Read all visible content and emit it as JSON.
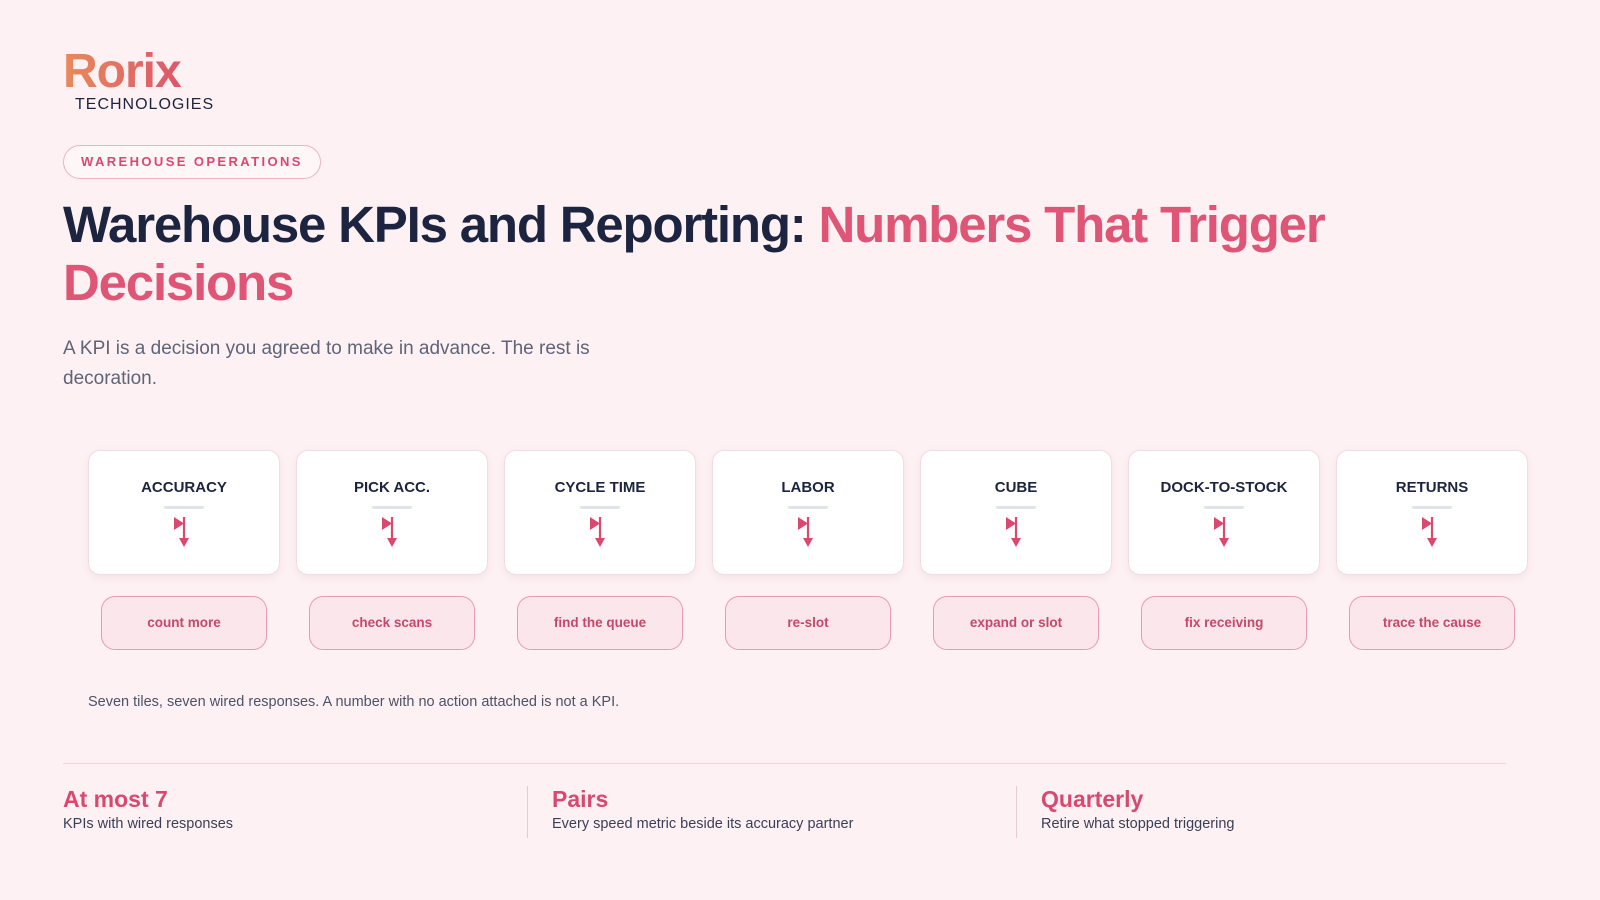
{
  "brand": {
    "name": "Rorix",
    "tagline": "TECHNOLOGIES"
  },
  "eyebrow": "WAREHOUSE OPERATIONS",
  "title": {
    "main": "Warehouse KPIs and Reporting:",
    "highlight": "Numbers That Trigger Decisions"
  },
  "subtitle": "A KPI is a decision you agreed to make in advance. The rest is decoration.",
  "tiles": [
    {
      "label": "ACCURACY",
      "action": "count more"
    },
    {
      "label": "PICK ACC.",
      "action": "check scans"
    },
    {
      "label": "CYCLE TIME",
      "action": "find the queue"
    },
    {
      "label": "LABOR",
      "action": "re-slot"
    },
    {
      "label": "CUBE",
      "action": "expand or slot"
    },
    {
      "label": "DOCK-TO-STOCK",
      "action": "fix receiving"
    },
    {
      "label": "RETURNS",
      "action": "trace the cause"
    }
  ],
  "caption": "Seven tiles, seven wired responses. A number with no action attached is not a KPI.",
  "stats": [
    {
      "value": "At most 7",
      "label": "KPIs with wired responses"
    },
    {
      "value": "Pairs",
      "label": "Every speed metric beside its accuracy partner"
    },
    {
      "value": "Quarterly",
      "label": "Retire what stopped triggering"
    }
  ]
}
